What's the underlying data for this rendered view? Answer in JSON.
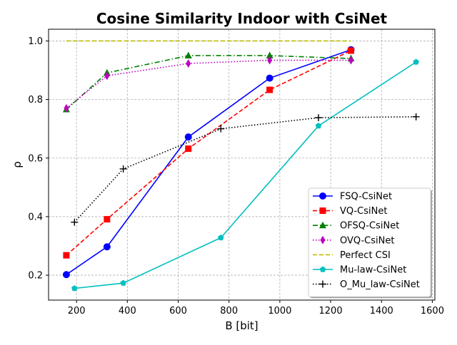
{
  "chart_data": {
    "type": "line",
    "title": "Cosine Similarity Indoor with CsiNet",
    "xlabel": "B [bit]",
    "ylabel": "ρ",
    "xlim": [
      90,
      1610
    ],
    "ylim": [
      0.115,
      1.04
    ],
    "xticks": [
      200,
      400,
      600,
      800,
      1000,
      1200,
      1400,
      1600
    ],
    "yticks": [
      0.2,
      0.4,
      0.6,
      0.8,
      1.0
    ],
    "xtick_labels": [
      "200",
      "400",
      "600",
      "800",
      "1000",
      "1200",
      "1400",
      "1600"
    ],
    "ytick_labels": [
      "0.2",
      "0.4",
      "0.6",
      "0.8",
      "1.0"
    ],
    "grid": true,
    "legend_position": "lower-right",
    "series": [
      {
        "name": "FSQ-CsiNet",
        "color": "#0000ff",
        "dash": "solid",
        "marker": "circle",
        "x": [
          160,
          320,
          640,
          960,
          1280
        ],
        "y": [
          0.202,
          0.297,
          0.672,
          0.873,
          0.97
        ]
      },
      {
        "name": "VQ-CsiNet",
        "color": "#ff0000",
        "dash": "dashed",
        "marker": "square",
        "x": [
          160,
          320,
          640,
          960,
          1280
        ],
        "y": [
          0.268,
          0.391,
          0.632,
          0.833,
          0.967
        ]
      },
      {
        "name": "OFSQ-CsiNet",
        "color": "#008000",
        "dash": "dashdot",
        "marker": "triangle",
        "x": [
          160,
          320,
          640,
          960,
          1280
        ],
        "y": [
          0.766,
          0.891,
          0.95,
          0.95,
          0.94
        ]
      },
      {
        "name": "OVQ-CsiNet",
        "color": "#bf00bf",
        "dash": "dotted",
        "marker": "diamond",
        "x": [
          160,
          320,
          640,
          960,
          1280
        ],
        "y": [
          0.77,
          0.881,
          0.923,
          0.934,
          0.934
        ]
      },
      {
        "name": "Perfect CSI",
        "color": "#bfbf00",
        "dash": "dashed",
        "marker": "none",
        "x": [
          160,
          1280
        ],
        "y": [
          1.0,
          1.0
        ]
      },
      {
        "name": "Mu-law-CsiNet",
        "color": "#00bfbf",
        "dash": "solid",
        "marker": "pentagon",
        "x": [
          192,
          384,
          768,
          1152,
          1536
        ],
        "y": [
          0.155,
          0.173,
          0.328,
          0.71,
          0.928
        ]
      },
      {
        "name": "O_Mu_law-CsiNet",
        "color": "#000000",
        "dash": "dotted",
        "marker": "plus",
        "x": [
          192,
          384,
          768,
          1152,
          1536
        ],
        "y": [
          0.381,
          0.563,
          0.7,
          0.738,
          0.741
        ]
      }
    ]
  }
}
